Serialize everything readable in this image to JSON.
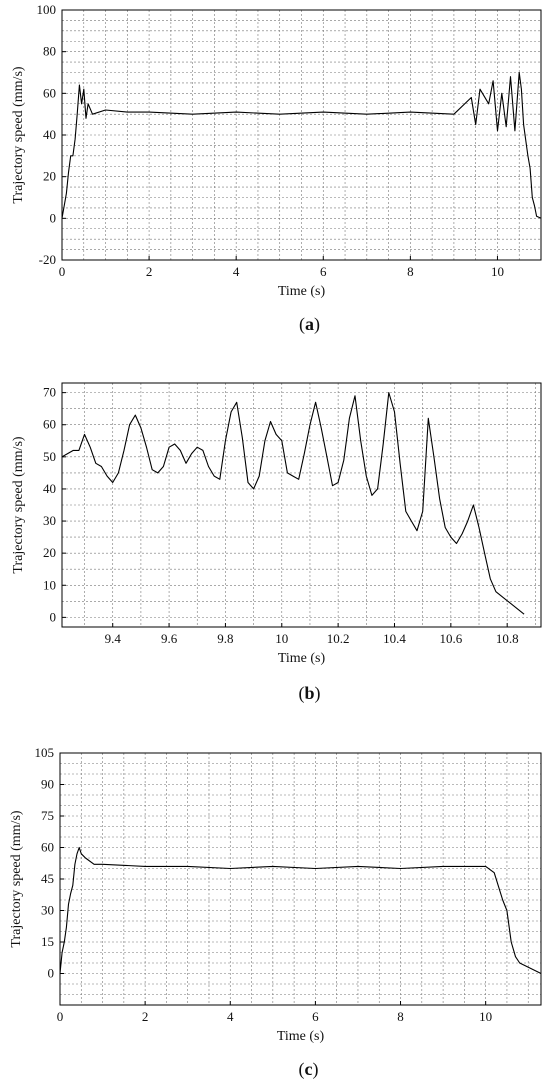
{
  "chart_data": [
    {
      "type": "line",
      "panel": "(a)",
      "panel_letter": "a",
      "xlabel": "Time (s)",
      "ylabel": "Trajectory speed (mm/s)",
      "xlim": [
        0,
        11
      ],
      "ylim": [
        -20,
        100
      ],
      "xticks": [
        0,
        2,
        4,
        6,
        8,
        10
      ],
      "yticks": [
        -20,
        0,
        20,
        40,
        60,
        80,
        100
      ],
      "minor_x_step": 0.5,
      "minor_y_step": 5,
      "grid": true,
      "series": [
        {
          "x": [
            0.0,
            0.1,
            0.15,
            0.2,
            0.25,
            0.3,
            0.35,
            0.4,
            0.45,
            0.5,
            0.55,
            0.6,
            0.7,
            1.0,
            1.5,
            2.0,
            3.0,
            4.0,
            5.0,
            6.0,
            7.0,
            8.0,
            9.0,
            9.4,
            9.5,
            9.6,
            9.8,
            9.9,
            10.0,
            10.1,
            10.2,
            10.3,
            10.4,
            10.5,
            10.55,
            10.6,
            10.7,
            10.75,
            10.8,
            10.85,
            10.9,
            11.0
          ],
          "y": [
            0,
            12,
            22,
            30,
            30,
            38,
            50,
            64,
            55,
            62,
            48,
            55,
            50,
            52,
            51,
            51,
            50,
            51,
            50,
            51,
            50,
            51,
            50,
            58,
            45,
            62,
            55,
            66,
            42,
            60,
            44,
            68,
            42,
            70,
            62,
            45,
            30,
            24,
            10,
            6,
            1,
            0
          ]
        }
      ]
    },
    {
      "type": "line",
      "panel": "(b)",
      "panel_letter": "b",
      "xlabel": "Time (s)",
      "ylabel": "Trajectory speed (mm/s)",
      "xlim": [
        9.22,
        10.92
      ],
      "ylim": [
        -3,
        73
      ],
      "xticks": [
        9.4,
        9.6,
        9.8,
        10.0,
        10.2,
        10.4,
        10.6,
        10.8
      ],
      "yticks": [
        0,
        10,
        20,
        30,
        40,
        50,
        60,
        70
      ],
      "minor_x_step": 0.1,
      "minor_y_step": 5,
      "grid": true,
      "series": [
        {
          "x": [
            9.22,
            9.24,
            9.26,
            9.28,
            9.3,
            9.32,
            9.34,
            9.36,
            9.38,
            9.4,
            9.42,
            9.44,
            9.46,
            9.48,
            9.5,
            9.52,
            9.54,
            9.56,
            9.58,
            9.6,
            9.62,
            9.64,
            9.66,
            9.68,
            9.7,
            9.72,
            9.74,
            9.76,
            9.78,
            9.8,
            9.82,
            9.84,
            9.86,
            9.88,
            9.9,
            9.92,
            9.94,
            9.96,
            9.98,
            10.0,
            10.02,
            10.04,
            10.06,
            10.08,
            10.1,
            10.12,
            10.14,
            10.16,
            10.18,
            10.2,
            10.22,
            10.24,
            10.26,
            10.28,
            10.3,
            10.32,
            10.34,
            10.36,
            10.38,
            10.4,
            10.42,
            10.44,
            10.46,
            10.48,
            10.5,
            10.52,
            10.54,
            10.56,
            10.58,
            10.6,
            10.62,
            10.64,
            10.66,
            10.68,
            10.7,
            10.72,
            10.74,
            10.76,
            10.86
          ],
          "y": [
            50,
            51,
            52,
            52,
            57,
            53,
            48,
            47,
            44,
            42,
            45,
            52,
            60,
            63,
            59,
            53,
            46,
            45,
            47,
            53,
            54,
            52,
            48,
            51,
            53,
            52,
            47,
            44,
            43,
            55,
            64,
            67,
            56,
            42,
            40,
            44,
            55,
            61,
            57,
            55,
            45,
            44,
            43,
            51,
            60,
            67,
            59,
            50,
            41,
            42,
            49,
            62,
            69,
            55,
            44,
            38,
            40,
            54,
            70,
            64,
            48,
            33,
            30,
            27,
            33,
            62,
            50,
            37,
            28,
            25,
            23,
            26,
            30,
            35,
            28,
            20,
            12,
            8,
            1
          ]
        }
      ]
    },
    {
      "type": "line",
      "panel": "(c)",
      "panel_letter": "c",
      "xlabel": "Time (s)",
      "ylabel": "Trajectory speed (mm/s)",
      "xlim": [
        0,
        11.3
      ],
      "ylim": [
        -15,
        105
      ],
      "xticks": [
        0,
        2,
        4,
        6,
        8,
        10
      ],
      "yticks": [
        0,
        15,
        30,
        45,
        60,
        75,
        90,
        105
      ],
      "minor_x_step": 0.5,
      "minor_y_step": 5,
      "grid": true,
      "series": [
        {
          "x": [
            0.0,
            0.05,
            0.1,
            0.15,
            0.2,
            0.25,
            0.3,
            0.35,
            0.4,
            0.45,
            0.5,
            0.6,
            0.8,
            1.0,
            2.0,
            3.0,
            4.0,
            5.0,
            6.0,
            7.0,
            8.0,
            9.0,
            10.0,
            10.2,
            10.4,
            10.5,
            10.6,
            10.7,
            10.8,
            11.3
          ],
          "y": [
            0,
            10,
            15,
            22,
            33,
            38,
            42,
            52,
            57,
            60,
            57,
            55,
            52,
            52,
            51,
            51,
            50,
            51,
            50,
            51,
            50,
            51,
            51,
            48,
            35,
            30,
            15,
            8,
            5,
            0
          ]
        }
      ]
    }
  ]
}
